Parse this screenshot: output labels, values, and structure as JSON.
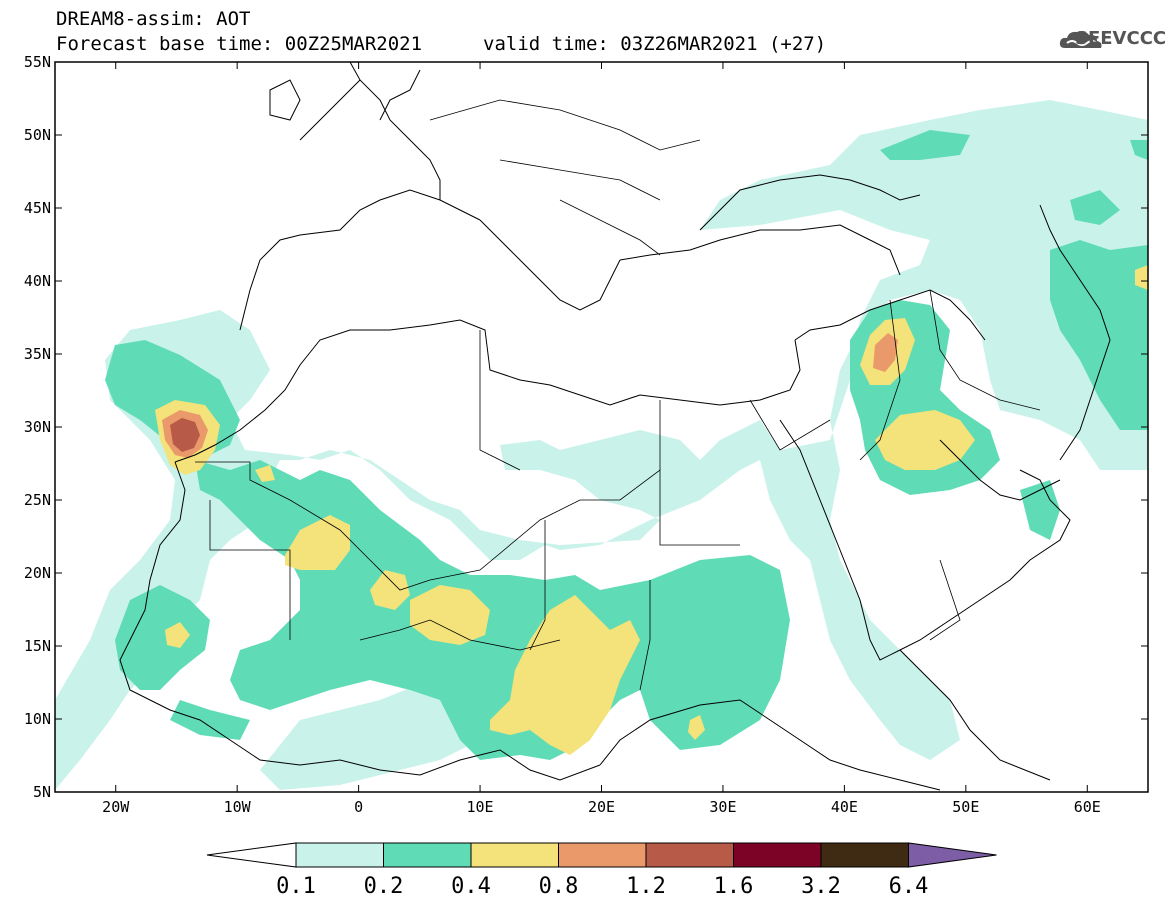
{
  "header": {
    "title": "DREAM8-assim: AOT",
    "base_time": "Forecast base time: 00Z25MAR2021",
    "valid_time": "valid time: 03Z26MAR2021 (+27)",
    "logo_text": "SEEVCCC"
  },
  "map": {
    "lon_range": [
      -25,
      65
    ],
    "lat_range": [
      5,
      55
    ],
    "lat_ticks": [
      "55N",
      "50N",
      "45N",
      "40N",
      "35N",
      "30N",
      "25N",
      "20N",
      "15N",
      "10N",
      "5N"
    ],
    "lon_ticks": [
      "20W",
      "10W",
      "0",
      "10E",
      "20E",
      "30E",
      "40E",
      "50E",
      "60E"
    ]
  },
  "legend": {
    "levels": [
      "0.1",
      "0.2",
      "0.4",
      "0.8",
      "1.2",
      "1.6",
      "3.2",
      "6.4"
    ],
    "colors": [
      "#ffffff",
      "#c8f2ea",
      "#5fdcb5",
      "#f4e27a",
      "#ea9a6a",
      "#b85a48",
      "#7c0226",
      "#3f2a14",
      "#7d5ea6"
    ]
  }
}
